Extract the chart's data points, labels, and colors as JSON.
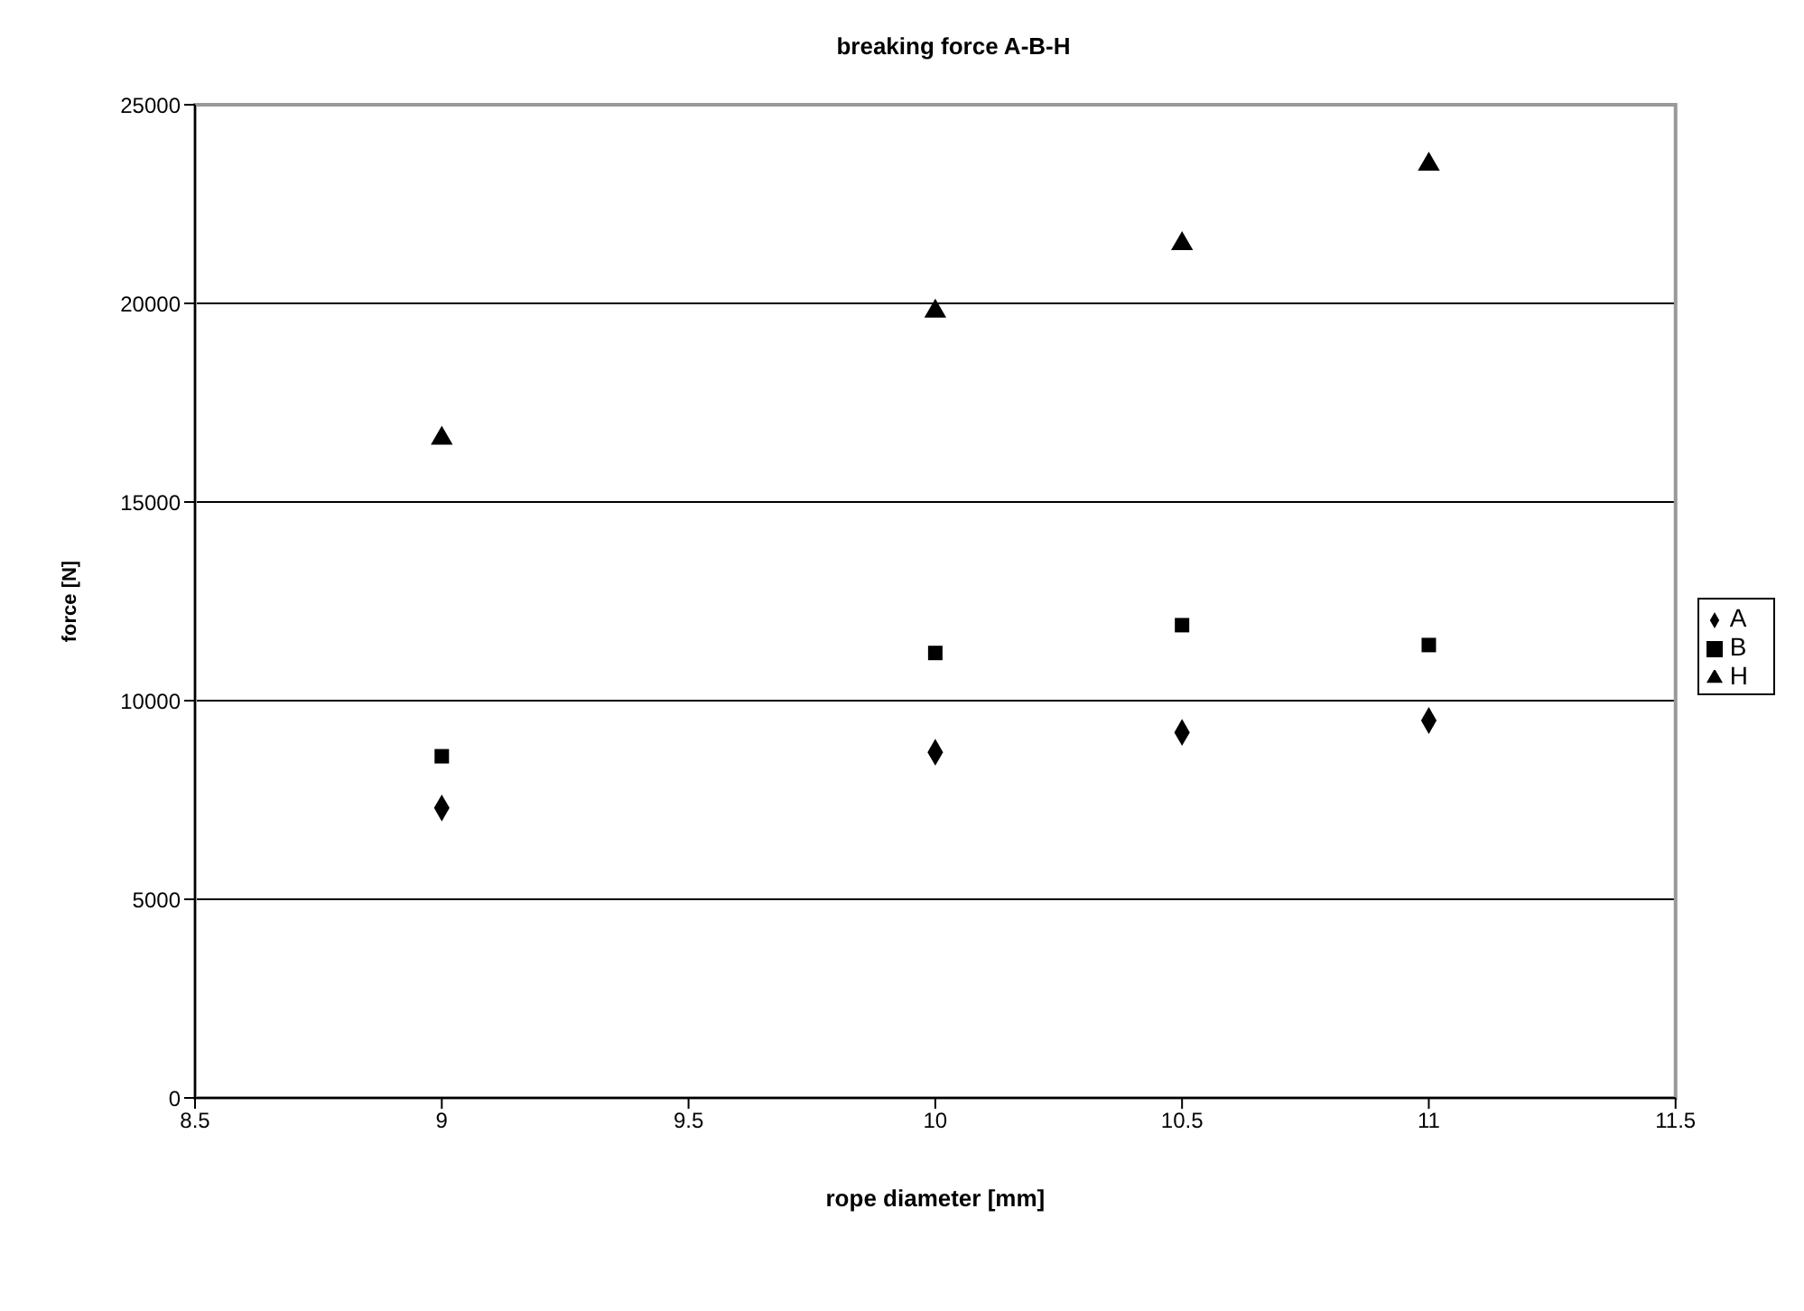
{
  "chart_data": {
    "type": "scatter",
    "title": "breaking force A-B-H",
    "xlabel": "rope diameter [mm]",
    "ylabel": "force [N]",
    "x": [
      9,
      10,
      10.5,
      11
    ],
    "series": [
      {
        "name": "A",
        "color": "#000000",
        "marker": "diamond",
        "values": [
          7300,
          8700,
          9200,
          9500
        ]
      },
      {
        "name": "B",
        "color": "#000000",
        "marker": "square",
        "values": [
          8600,
          11200,
          11900,
          11400
        ]
      },
      {
        "name": "H",
        "color": "#000000",
        "marker": "triangle",
        "values": [
          16600,
          19800,
          21500,
          23500
        ]
      }
    ],
    "xlim": [
      8.5,
      11.5
    ],
    "xticks": [
      8.5,
      9,
      9.5,
      10,
      10.5,
      11,
      11.5
    ],
    "ylim": [
      0,
      25000
    ],
    "yticks": [
      0,
      5000,
      10000,
      15000,
      20000,
      25000
    ],
    "grid": "y",
    "legend": "right"
  }
}
